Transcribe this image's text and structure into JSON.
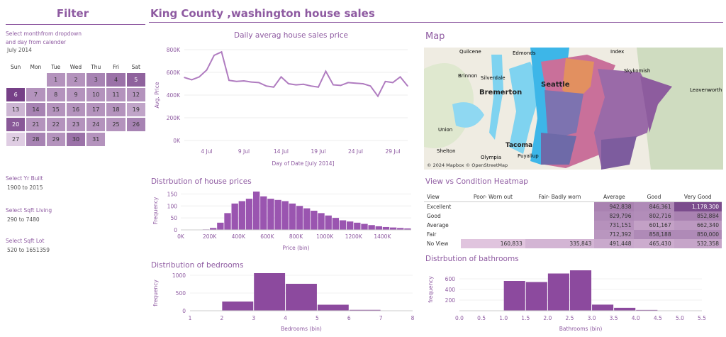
{
  "filter": {
    "title": "Filter",
    "month_label_1": "Select monthfrom dropdown",
    "month_label_2": "and day from calender",
    "month_value": "July 2014",
    "yr_built_label": "Select Yr Built",
    "yr_built_value": "1900 to 2015",
    "sqft_living_label": "Select Sqft Living",
    "sqft_living_value": "290 to 7480",
    "sqft_lot_label": "Select Sqft Lot",
    "sqft_lot_value": "520 to 1651359"
  },
  "calendar": {
    "days": [
      "Sun",
      "Mon",
      "Tue",
      "Wed",
      "Thu",
      "Fri",
      "Sat"
    ],
    "weeks": [
      [
        "",
        "",
        "1",
        "2",
        "3",
        "4",
        "5"
      ],
      [
        "6",
        "7",
        "8",
        "9",
        "10",
        "11",
        "12"
      ],
      [
        "13",
        "14",
        "15",
        "16",
        "17",
        "18",
        "19"
      ],
      [
        "20",
        "21",
        "22",
        "23",
        "24",
        "25",
        "26"
      ],
      [
        "27",
        "28",
        "29",
        "30",
        "31",
        "",
        ""
      ]
    ],
    "shades": [
      [
        null,
        null,
        0.45,
        0.45,
        0.55,
        0.65,
        0.75
      ],
      [
        0.95,
        0.45,
        0.45,
        0.45,
        0.45,
        0.45,
        0.45
      ],
      [
        0.25,
        0.55,
        0.45,
        0.45,
        0.45,
        0.45,
        0.35
      ],
      [
        0.8,
        0.45,
        0.45,
        0.45,
        0.45,
        0.45,
        0.55
      ],
      [
        0.1,
        0.55,
        0.45,
        0.65,
        0.45,
        null,
        null
      ]
    ]
  },
  "header": {
    "title": "King County ,washington house sales"
  },
  "line_chart": {
    "title": "Daily averag house sales price",
    "chart_data": {
      "type": "line",
      "title": "Daily averag house sales price",
      "xlabel": "Day of Date [July 2014]",
      "ylabel": "Avg. Price",
      "x": [
        1,
        2,
        3,
        4,
        5,
        6,
        7,
        8,
        9,
        10,
        11,
        12,
        13,
        14,
        15,
        16,
        17,
        18,
        19,
        20,
        21,
        22,
        23,
        24,
        25,
        26,
        27,
        28,
        29,
        30,
        31
      ],
      "values": [
        555000,
        535000,
        560000,
        620000,
        750000,
        780000,
        530000,
        520000,
        525000,
        515000,
        510000,
        480000,
        470000,
        560000,
        500000,
        490000,
        495000,
        480000,
        470000,
        610000,
        490000,
        485000,
        510000,
        505000,
        500000,
        480000,
        390000,
        520000,
        510000,
        560000,
        480000
      ],
      "ylim": [
        0,
        800000
      ],
      "yticks": [
        "0K",
        "200K",
        "400K",
        "600K",
        "800K"
      ],
      "ytick_values": [
        0,
        200000,
        400000,
        600000,
        800000
      ],
      "xticks": [
        "4 Jul",
        "9 Jul",
        "14 Jul",
        "19 Jul",
        "24 Jul",
        "29 Jul"
      ],
      "xtick_values": [
        4,
        9,
        14,
        19,
        24,
        29
      ],
      "color": "#b07cc0"
    }
  },
  "map": {
    "title": "Map",
    "attribution": "© 2024 Mapbox © OpenStreetMap",
    "labels": [
      "Quilcene",
      "Edmonds",
      "Index",
      "Brinnon",
      "Silverdale",
      "Skykomish",
      "Bremerton",
      "Seattle",
      "Leavenworth",
      "Union",
      "Shelton",
      "Tacoma",
      "Puyallup",
      "Olympia"
    ]
  },
  "price_hist": {
    "title": "Distrbution of house prices",
    "chart_data": {
      "type": "bar",
      "title": "Distrbution of house prices",
      "xlabel": "Price (bin)",
      "ylabel": "Frequency",
      "bins_start_k": [
        0,
        50,
        100,
        150,
        200,
        250,
        300,
        350,
        400,
        450,
        500,
        550,
        600,
        650,
        700,
        750,
        800,
        850,
        900,
        950,
        1000,
        1050,
        1100,
        1150,
        1200,
        1250,
        1300,
        1350,
        1400,
        1450,
        1500,
        1550
      ],
      "values": [
        0,
        0,
        0,
        2,
        8,
        30,
        70,
        110,
        120,
        130,
        160,
        140,
        130,
        125,
        120,
        110,
        100,
        90,
        80,
        70,
        60,
        50,
        40,
        35,
        30,
        25,
        20,
        15,
        12,
        10,
        8,
        6
      ],
      "ylim": [
        0,
        160
      ],
      "yticks": [
        "0",
        "50",
        "100",
        "150"
      ],
      "ytick_values": [
        0,
        50,
        100,
        150
      ],
      "xticks": [
        "0K",
        "200K",
        "400K",
        "600K",
        "800K",
        "1000K",
        "1200K",
        "1400K"
      ],
      "xtick_values": [
        0,
        200,
        400,
        600,
        800,
        1000,
        1200,
        1400
      ],
      "color": "#9a55b0"
    }
  },
  "heatmap": {
    "title": "View vs Condition Heatmap",
    "columns": [
      "View",
      "Poor- Worn out",
      "Fair- Badly worn",
      "Average",
      "Good",
      "Very Good"
    ],
    "rows": [
      {
        "label": "Excellent",
        "values": [
          "",
          "",
          "942,838",
          "846,361",
          "1,178,300"
        ],
        "shades": [
          null,
          null,
          0.55,
          0.5,
          0.9
        ]
      },
      {
        "label": "Good",
        "values": [
          "",
          "",
          "829,796",
          "802,716",
          "852,884"
        ],
        "shades": [
          null,
          null,
          0.5,
          0.48,
          0.55
        ]
      },
      {
        "label": "Average",
        "values": [
          "",
          "",
          "731,151",
          "601,167",
          "662,340"
        ],
        "shades": [
          null,
          null,
          0.45,
          0.35,
          0.4
        ]
      },
      {
        "label": "Fair",
        "values": [
          "",
          "",
          "712,392",
          "858,188",
          "850,000"
        ],
        "shades": [
          null,
          null,
          0.42,
          0.5,
          0.5
        ]
      },
      {
        "label": "No View",
        "values": [
          "160,833",
          "335,843",
          "491,448",
          "465,430",
          "532,358"
        ],
        "shades": [
          0.12,
          0.22,
          0.3,
          0.28,
          0.32
        ]
      }
    ]
  },
  "bedrooms_hist": {
    "title": "Distribution of bedrooms",
    "chart_data": {
      "type": "bar",
      "title": "Distribution of bedrooms",
      "xlabel": "Bedrooms (bin)",
      "ylabel": "frequency",
      "bins": [
        [
          1,
          2
        ],
        [
          2,
          3
        ],
        [
          3,
          4
        ],
        [
          4,
          5
        ],
        [
          5,
          6
        ],
        [
          6,
          7
        ],
        [
          7,
          8
        ]
      ],
      "values": [
        8,
        260,
        1060,
        760,
        170,
        25,
        6
      ],
      "xlim": [
        1,
        8
      ],
      "ylim": [
        0,
        1000
      ],
      "yticks": [
        "0",
        "500",
        "1000"
      ],
      "ytick_values": [
        0,
        500,
        1000
      ],
      "xticks": [
        "1",
        "2",
        "3",
        "4",
        "5",
        "6",
        "7",
        "8"
      ],
      "xtick_values": [
        1,
        2,
        3,
        4,
        5,
        6,
        7,
        8
      ],
      "color": "#8c4a9e"
    }
  },
  "bathrooms_hist": {
    "title": "Distrbution of bathrooms",
    "chart_data": {
      "type": "bar",
      "title": "Distrbution of bathrooms",
      "xlabel": "Bathrooms (bin)",
      "ylabel": "frequency",
      "bins": [
        [
          0.5,
          1.0
        ],
        [
          1.0,
          1.5
        ],
        [
          1.5,
          2.0
        ],
        [
          2.0,
          2.5
        ],
        [
          2.5,
          3.0
        ],
        [
          3.0,
          3.5
        ],
        [
          3.5,
          4.0
        ],
        [
          4.0,
          4.5
        ],
        [
          4.5,
          5.0
        ],
        [
          5.0,
          5.5
        ]
      ],
      "values": [
        0,
        560,
        540,
        700,
        760,
        115,
        55,
        15,
        4,
        1
      ],
      "xlim": [
        0,
        5.5
      ],
      "ylim": [
        0,
        800
      ],
      "yticks": [
        "200",
        "400",
        "600"
      ],
      "ytick_values": [
        200,
        400,
        600
      ],
      "xticks": [
        "0.0",
        "0.5",
        "1.0",
        "1.5",
        "2.0",
        "2.5",
        "3.0",
        "3.5",
        "4.0",
        "4.5",
        "5.0",
        "5.5"
      ],
      "xtick_values": [
        0,
        0.5,
        1,
        1.5,
        2,
        2.5,
        3,
        3.5,
        4,
        4.5,
        5,
        5.5
      ],
      "color": "#8c4a9e"
    }
  }
}
